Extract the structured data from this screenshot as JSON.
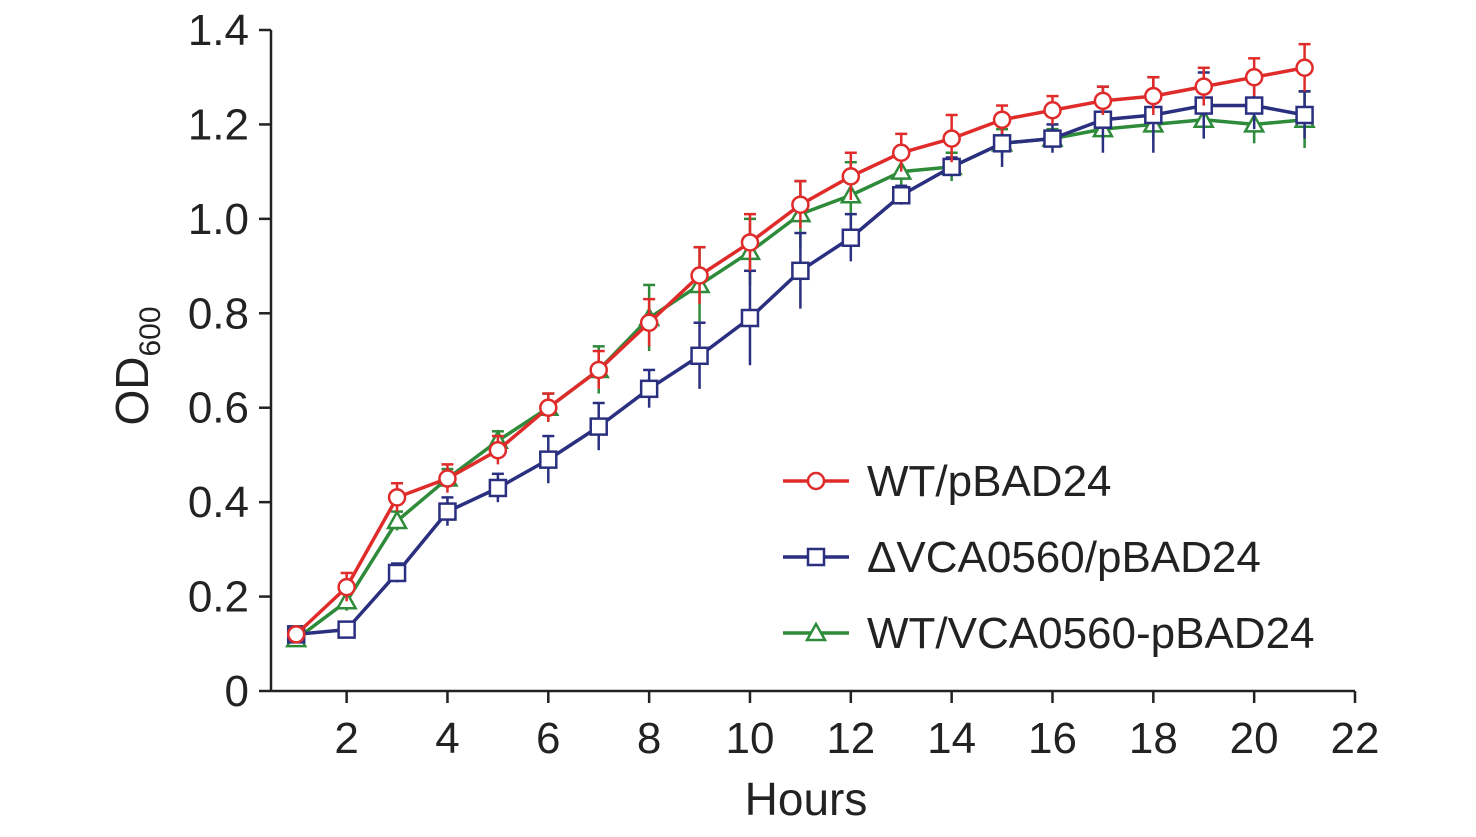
{
  "chart_data": {
    "type": "line",
    "xlabel": "Hours",
    "ylabel": "OD",
    "ylabel_sub": "600",
    "xlim": [
      0.5,
      22
    ],
    "ylim": [
      0,
      1.4
    ],
    "xticks": [
      2,
      4,
      6,
      8,
      10,
      12,
      14,
      16,
      18,
      20,
      22
    ],
    "yticks": [
      0,
      0.2,
      0.4,
      0.6,
      0.8,
      1.0,
      1.2,
      1.4
    ],
    "ytick_labels": [
      "0",
      "0.2",
      "0.4",
      "0.6",
      "0.8",
      "1.0",
      "1.2",
      "1.4"
    ],
    "grid": false,
    "legend_position": "bottom-right",
    "x": [
      1,
      2,
      3,
      4,
      5,
      6,
      7,
      8,
      9,
      10,
      11,
      12,
      13,
      14,
      15,
      16,
      17,
      18,
      19,
      20,
      21
    ],
    "series": [
      {
        "name": "WT/pBAD24",
        "color": "#e02b2b",
        "marker": "circle",
        "values": [
          0.12,
          0.22,
          0.41,
          0.45,
          0.51,
          0.6,
          0.68,
          0.78,
          0.88,
          0.95,
          1.03,
          1.09,
          1.14,
          1.17,
          1.21,
          1.23,
          1.25,
          1.26,
          1.28,
          1.3,
          1.32
        ],
        "errors": [
          0.01,
          0.03,
          0.03,
          0.03,
          0.03,
          0.03,
          0.04,
          0.05,
          0.06,
          0.06,
          0.05,
          0.05,
          0.04,
          0.05,
          0.03,
          0.03,
          0.03,
          0.04,
          0.04,
          0.04,
          0.05
        ]
      },
      {
        "name": "ΔVCA0560/pBAD24",
        "color": "#2a2f80",
        "marker": "square",
        "values": [
          0.12,
          0.13,
          0.25,
          0.38,
          0.43,
          0.49,
          0.56,
          0.64,
          0.71,
          0.79,
          0.89,
          0.96,
          1.05,
          1.11,
          1.16,
          1.17,
          1.21,
          1.22,
          1.24,
          1.24,
          1.22
        ],
        "errors": [
          0.01,
          0.01,
          0.02,
          0.03,
          0.03,
          0.05,
          0.05,
          0.04,
          0.07,
          0.1,
          0.08,
          0.05,
          0.02,
          0.02,
          0.05,
          0.03,
          0.07,
          0.08,
          0.07,
          0.05,
          0.05
        ]
      },
      {
        "name": "WT/VCA0560-pBAD24",
        "color": "#2e8b3a",
        "marker": "triangle",
        "values": [
          0.11,
          0.19,
          0.36,
          0.45,
          0.53,
          0.6,
          0.68,
          0.79,
          0.86,
          0.93,
          1.01,
          1.05,
          1.1,
          1.11,
          1.16,
          1.17,
          1.19,
          1.2,
          1.21,
          1.2,
          1.21
        ],
        "errors": [
          0.01,
          0.02,
          0.02,
          0.02,
          0.02,
          0.03,
          0.05,
          0.07,
          0.08,
          0.07,
          0.07,
          0.07,
          0.04,
          0.03,
          0.03,
          0.02,
          0.02,
          0.03,
          0.03,
          0.04,
          0.06
        ]
      }
    ]
  }
}
